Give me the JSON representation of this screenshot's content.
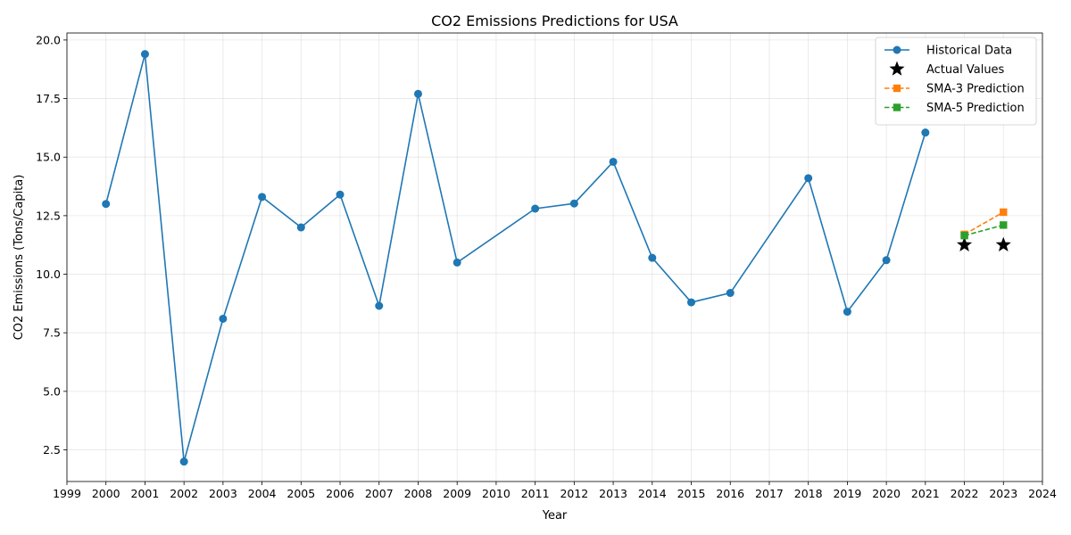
{
  "chart_data": {
    "type": "line",
    "title": "CO2 Emissions Predictions for USA",
    "xlabel": "Year",
    "ylabel": "CO2 Emissions (Tons/Capita)",
    "xlim": [
      1999,
      2024
    ],
    "ylim": [
      1.15,
      20.3
    ],
    "xticks": [
      "1999",
      "2000",
      "2001",
      "2002",
      "2003",
      "2004",
      "2005",
      "2006",
      "2007",
      "2008",
      "2009",
      "2010",
      "2011",
      "2012",
      "2013",
      "2014",
      "2015",
      "2016",
      "2017",
      "2018",
      "2019",
      "2020",
      "2021",
      "2022",
      "2023",
      "2024"
    ],
    "yticks": [
      "2.5",
      "5.0",
      "7.5",
      "10.0",
      "12.5",
      "15.0",
      "17.5",
      "20.0"
    ],
    "grid": true,
    "legend_position": "top-right",
    "series": [
      {
        "name": "Historical Data",
        "style": "line-circle",
        "color": "#1f77b4",
        "x": [
          2000,
          2001,
          2002,
          2003,
          2004,
          2005,
          2006,
          2007,
          2008,
          2009,
          2011,
          2012,
          2013,
          2014,
          2015,
          2016,
          2018,
          2019,
          2020,
          2021
        ],
        "y": [
          13.0,
          19.4,
          2.0,
          8.1,
          13.3,
          12.0,
          13.4,
          8.65,
          17.7,
          10.5,
          12.8,
          13.02,
          14.8,
          10.7,
          8.8,
          9.2,
          14.1,
          8.4,
          10.6,
          16.05
        ]
      },
      {
        "name": "Actual Values",
        "style": "star",
        "color": "#000000",
        "x": [
          2022,
          2023
        ],
        "y": [
          11.25,
          11.25
        ]
      },
      {
        "name": "SMA-3 Prediction",
        "style": "dashed-square",
        "color": "#ff7f0e",
        "x": [
          2022,
          2023
        ],
        "y": [
          11.7,
          12.65
        ]
      },
      {
        "name": "SMA-5 Prediction",
        "style": "dashed-square",
        "color": "#2ca02c",
        "x": [
          2022,
          2023
        ],
        "y": [
          11.65,
          12.1
        ]
      }
    ]
  }
}
